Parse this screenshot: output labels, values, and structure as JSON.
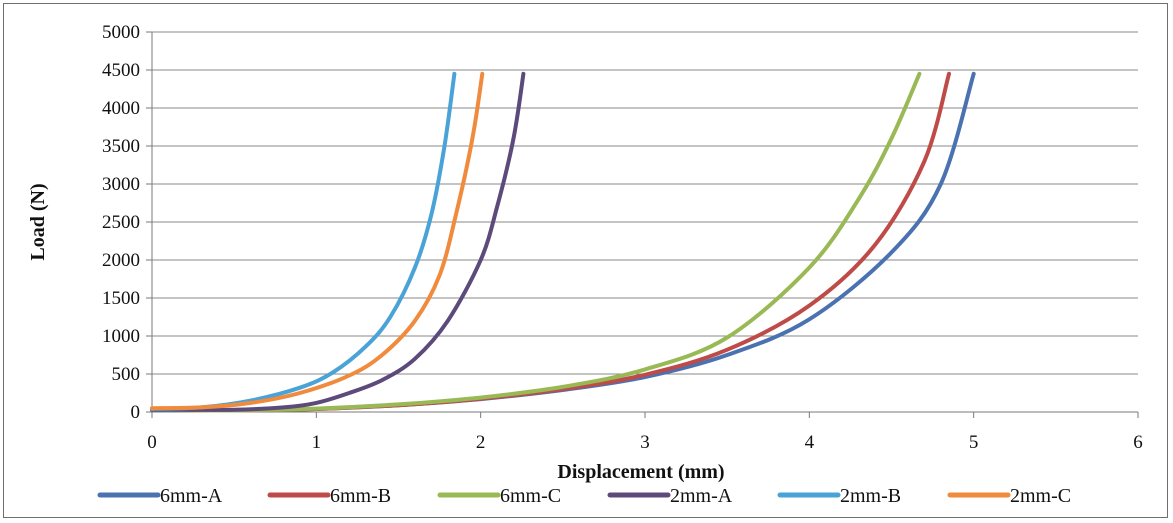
{
  "chart_data": {
    "type": "line",
    "xlabel": "Displacement (mm)",
    "ylabel": "Load (N)",
    "xlim": [
      0,
      6
    ],
    "ylim": [
      0,
      5000
    ],
    "x_ticks": [
      0,
      1,
      2,
      3,
      4,
      5,
      6
    ],
    "y_ticks": [
      0,
      500,
      1000,
      1500,
      2000,
      2500,
      3000,
      3500,
      4000,
      4500,
      5000
    ],
    "grid": "horizontal",
    "legend_position": "bottom",
    "series": [
      {
        "name": "6mm-A",
        "color": "#4a72b0",
        "points": [
          [
            0,
            30
          ],
          [
            0.5,
            20
          ],
          [
            1,
            40
          ],
          [
            1.5,
            90
          ],
          [
            2,
            170
          ],
          [
            2.5,
            290
          ],
          [
            3,
            460
          ],
          [
            3.5,
            750
          ],
          [
            4,
            1220
          ],
          [
            4.5,
            2100
          ],
          [
            4.8,
            3000
          ],
          [
            5.0,
            4450
          ]
        ]
      },
      {
        "name": "6mm-B",
        "color": "#be4b48",
        "points": [
          [
            0,
            30
          ],
          [
            0.5,
            20
          ],
          [
            1,
            40
          ],
          [
            1.5,
            90
          ],
          [
            2,
            175
          ],
          [
            2.5,
            300
          ],
          [
            3,
            490
          ],
          [
            3.5,
            820
          ],
          [
            4,
            1400
          ],
          [
            4.4,
            2200
          ],
          [
            4.7,
            3300
          ],
          [
            4.85,
            4450
          ]
        ]
      },
      {
        "name": "6mm-C",
        "color": "#98b954",
        "points": [
          [
            0,
            30
          ],
          [
            0.5,
            20
          ],
          [
            1,
            45
          ],
          [
            1.5,
            100
          ],
          [
            2,
            190
          ],
          [
            2.5,
            330
          ],
          [
            3,
            560
          ],
          [
            3.5,
            980
          ],
          [
            4,
            1900
          ],
          [
            4.3,
            2800
          ],
          [
            4.5,
            3600
          ],
          [
            4.67,
            4450
          ]
        ]
      },
      {
        "name": "2mm-A",
        "color": "#5c4a7b",
        "points": [
          [
            0,
            30
          ],
          [
            0.5,
            30
          ],
          [
            0.8,
            60
          ],
          [
            1,
            120
          ],
          [
            1.2,
            250
          ],
          [
            1.4,
            420
          ],
          [
            1.6,
            700
          ],
          [
            1.8,
            1200
          ],
          [
            2.0,
            2000
          ],
          [
            2.1,
            2700
          ],
          [
            2.2,
            3600
          ],
          [
            2.26,
            4450
          ]
        ]
      },
      {
        "name": "2mm-B",
        "color": "#4aa3d6",
        "points": [
          [
            0,
            40
          ],
          [
            0.3,
            60
          ],
          [
            0.6,
            150
          ],
          [
            0.9,
            320
          ],
          [
            1.1,
            520
          ],
          [
            1.3,
            860
          ],
          [
            1.45,
            1250
          ],
          [
            1.6,
            1900
          ],
          [
            1.7,
            2600
          ],
          [
            1.78,
            3500
          ],
          [
            1.84,
            4450
          ]
        ]
      },
      {
        "name": "2mm-C",
        "color": "#f08a3c",
        "points": [
          [
            0,
            50
          ],
          [
            0.3,
            60
          ],
          [
            0.6,
            120
          ],
          [
            0.9,
            250
          ],
          [
            1.2,
            480
          ],
          [
            1.4,
            750
          ],
          [
            1.6,
            1200
          ],
          [
            1.75,
            1800
          ],
          [
            1.85,
            2600
          ],
          [
            1.95,
            3600
          ],
          [
            2.01,
            4450
          ]
        ]
      }
    ]
  }
}
